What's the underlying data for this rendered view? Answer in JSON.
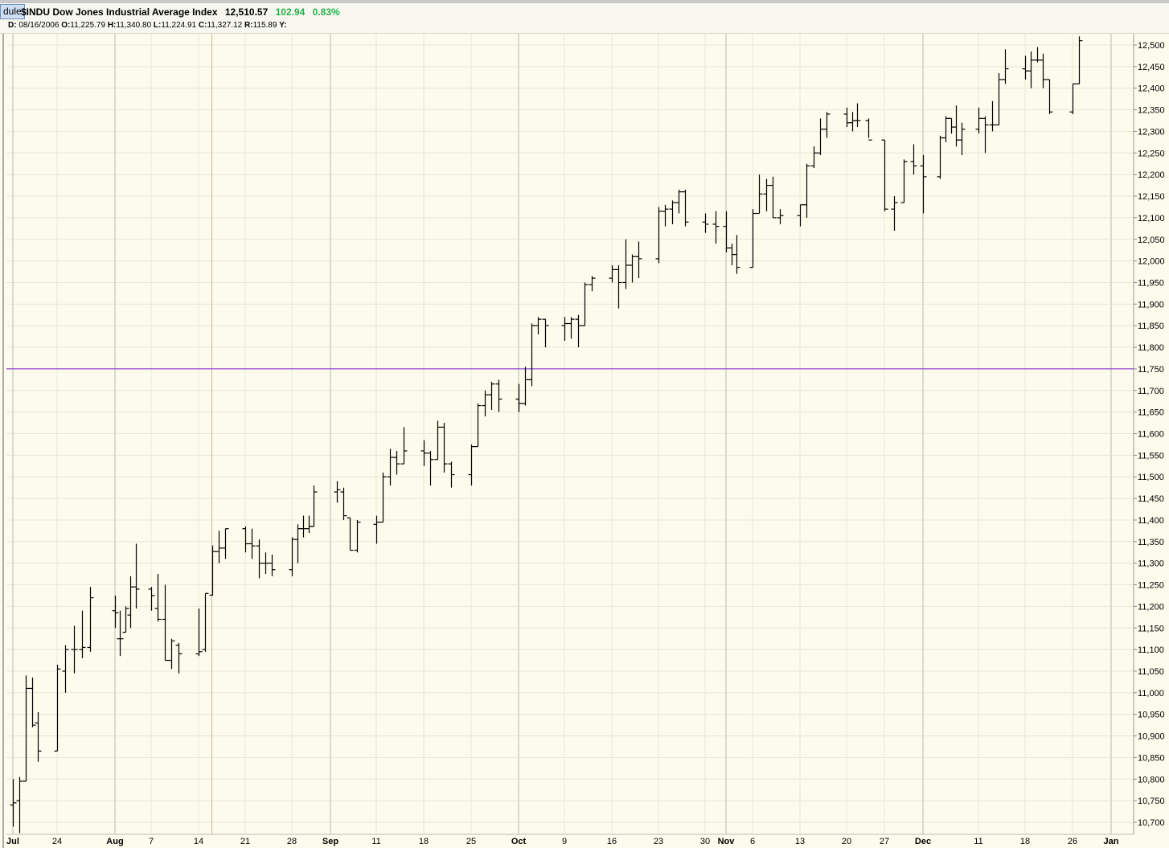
{
  "header": {
    "tab_label": "dule",
    "symbol": "$INDU",
    "name": "Dow Jones Industrial Average Index",
    "last": "12,510.57",
    "change": "102.94",
    "change_pct": "0.83%",
    "change_color": "#22b24c"
  },
  "readout": {
    "d_label": "D:",
    "d_value": "08/16/2006",
    "o_label": "O:",
    "o_value": "11,225.79",
    "h_label": "H:",
    "h_value": "11,340.80",
    "l_label": "L:",
    "l_value": "11,224.91",
    "c_label": "C:",
    "c_value": "11,327.12",
    "r_label": "R:",
    "r_value": "115.89",
    "y_label": "Y:"
  },
  "chart_data": {
    "type": "ohlc",
    "title": "$INDU Dow Jones Industrial Average Index",
    "xlabel": "",
    "ylabel": "",
    "ylim": [
      10680,
      12530
    ],
    "y_ticks": [
      10700,
      10750,
      10800,
      10850,
      10900,
      10950,
      11000,
      11050,
      11100,
      11150,
      11200,
      11250,
      11300,
      11350,
      11400,
      11450,
      11500,
      11550,
      11600,
      11650,
      11700,
      11750,
      11800,
      11850,
      11900,
      11950,
      12000,
      12050,
      12100,
      12150,
      12200,
      12250,
      12300,
      12350,
      12400,
      12450,
      12500
    ],
    "y_tick_labels": [
      "10,700",
      "10,750",
      "10,800",
      "10,850",
      "10,900",
      "10,950",
      "11,000",
      "11,050",
      "11,100",
      "11,150",
      "11,200",
      "11,250",
      "11,300",
      "11,350",
      "11,400",
      "11,450",
      "11,500",
      "11,550",
      "11,600",
      "11,650",
      "11,700",
      "11,750",
      "11,800",
      "11,850",
      "11,900",
      "11,950",
      "12,000",
      "12,050",
      "12,100",
      "12,150",
      "12,200",
      "12,250",
      "12,300",
      "12,350",
      "12,400",
      "12,450",
      "12,500"
    ],
    "x_ticks": [
      {
        "date": "2006-07-17",
        "label": "Jul",
        "major": true
      },
      {
        "date": "2006-07-24",
        "label": "24",
        "major": false
      },
      {
        "date": "2006-07-31",
        "label": "Aug",
        "major": true
      },
      {
        "date": "2006-08-07",
        "label": "7",
        "major": false
      },
      {
        "date": "2006-08-14",
        "label": "14",
        "major": false
      },
      {
        "date": "2006-08-21",
        "label": "21",
        "major": false
      },
      {
        "date": "2006-08-28",
        "label": "28",
        "major": false
      },
      {
        "date": "2006-09-04",
        "label": "Sep",
        "major": true
      },
      {
        "date": "2006-09-11",
        "label": "11",
        "major": false
      },
      {
        "date": "2006-09-18",
        "label": "18",
        "major": false
      },
      {
        "date": "2006-09-25",
        "label": "25",
        "major": false
      },
      {
        "date": "2006-10-02",
        "label": "Oct",
        "major": true
      },
      {
        "date": "2006-10-09",
        "label": "9",
        "major": false
      },
      {
        "date": "2006-10-16",
        "label": "16",
        "major": false
      },
      {
        "date": "2006-10-23",
        "label": "23",
        "major": false
      },
      {
        "date": "2006-10-30",
        "label": "30",
        "major": false
      },
      {
        "date": "2006-11-01",
        "label": "Nov",
        "major": true
      },
      {
        "date": "2006-11-06",
        "label": "6",
        "major": false
      },
      {
        "date": "2006-11-13",
        "label": "13",
        "major": false
      },
      {
        "date": "2006-11-20",
        "label": "20",
        "major": false
      },
      {
        "date": "2006-11-27",
        "label": "27",
        "major": false
      },
      {
        "date": "2006-12-01",
        "label": "Dec",
        "major": true
      },
      {
        "date": "2006-12-11",
        "label": "11",
        "major": false
      },
      {
        "date": "2006-12-18",
        "label": "18",
        "major": false
      },
      {
        "date": "2006-12-26",
        "label": "26",
        "major": false
      },
      {
        "date": "2007-01-01",
        "label": "Jan",
        "major": true
      }
    ],
    "crosshair": {
      "date": "2006-08-16",
      "value": 11750
    },
    "colors": {
      "background": "#fdfbeb",
      "grid": "#e6e8d8",
      "grid_major": "#d9dccb",
      "bar": "#000000",
      "crosshair_h": "#7b1fd1",
      "crosshair_v": "#d7b29a"
    },
    "bars": [
      {
        "date": "2006-07-17",
        "o": 10740,
        "h": 10800,
        "l": 10690,
        "c": 10745
      },
      {
        "date": "2006-07-18",
        "o": 10750,
        "h": 10805,
        "l": 10675,
        "c": 10795
      },
      {
        "date": "2006-07-19",
        "o": 10795,
        "h": 11040,
        "l": 10795,
        "c": 11010
      },
      {
        "date": "2006-07-20",
        "o": 11010,
        "h": 11035,
        "l": 10920,
        "c": 10925
      },
      {
        "date": "2006-07-21",
        "o": 10930,
        "h": 10955,
        "l": 10840,
        "c": 10865
      },
      {
        "date": "2006-07-24",
        "o": 10865,
        "h": 11065,
        "l": 10865,
        "c": 11055
      },
      {
        "date": "2006-07-25",
        "o": 11050,
        "h": 11110,
        "l": 11000,
        "c": 11100
      },
      {
        "date": "2006-07-26",
        "o": 11100,
        "h": 11155,
        "l": 11045,
        "c": 11100
      },
      {
        "date": "2006-07-27",
        "o": 11100,
        "h": 11190,
        "l": 11080,
        "c": 11105
      },
      {
        "date": "2006-07-28",
        "o": 11105,
        "h": 11245,
        "l": 11095,
        "c": 11220
      },
      {
        "date": "2006-07-31",
        "o": 11190,
        "h": 11225,
        "l": 11150,
        "c": 11185
      },
      {
        "date": "2006-08-01",
        "o": 11125,
        "h": 11190,
        "l": 11085,
        "c": 11125
      },
      {
        "date": "2006-08-02",
        "o": 11140,
        "h": 11200,
        "l": 11140,
        "c": 11195
      },
      {
        "date": "2006-08-03",
        "o": 11180,
        "h": 11270,
        "l": 11150,
        "c": 11245
      },
      {
        "date": "2006-08-04",
        "o": 11245,
        "h": 11345,
        "l": 11195,
        "c": 11240
      },
      {
        "date": "2006-08-07",
        "o": 11240,
        "h": 11245,
        "l": 11190,
        "c": 11225
      },
      {
        "date": "2006-08-08",
        "o": 11195,
        "h": 11275,
        "l": 11165,
        "c": 11170
      },
      {
        "date": "2006-08-09",
        "o": 11170,
        "h": 11250,
        "l": 11075,
        "c": 11075
      },
      {
        "date": "2006-08-10",
        "o": 11075,
        "h": 11125,
        "l": 11055,
        "c": 11120
      },
      {
        "date": "2006-08-11",
        "o": 11110,
        "h": 11115,
        "l": 11045,
        "c": 11090
      },
      {
        "date": "2006-08-14",
        "o": 11090,
        "h": 11195,
        "l": 11085,
        "c": 11095
      },
      {
        "date": "2006-08-15",
        "o": 11100,
        "h": 11230,
        "l": 11095,
        "c": 11230
      },
      {
        "date": "2006-08-16",
        "o": 11226,
        "h": 11341,
        "l": 11225,
        "c": 11327
      },
      {
        "date": "2006-08-17",
        "o": 11327,
        "h": 11375,
        "l": 11300,
        "c": 11335
      },
      {
        "date": "2006-08-18",
        "o": 11335,
        "h": 11380,
        "l": 11310,
        "c": 11380
      },
      {
        "date": "2006-08-21",
        "o": 11380,
        "h": 11385,
        "l": 11325,
        "c": 11345
      },
      {
        "date": "2006-08-22",
        "o": 11345,
        "h": 11380,
        "l": 11310,
        "c": 11340
      },
      {
        "date": "2006-08-23",
        "o": 11340,
        "h": 11355,
        "l": 11265,
        "c": 11300
      },
      {
        "date": "2006-08-24",
        "o": 11300,
        "h": 11325,
        "l": 11275,
        "c": 11300
      },
      {
        "date": "2006-08-25",
        "o": 11300,
        "h": 11320,
        "l": 11270,
        "c": 11285
      },
      {
        "date": "2006-08-28",
        "o": 11285,
        "h": 11360,
        "l": 11270,
        "c": 11355
      },
      {
        "date": "2006-08-29",
        "o": 11355,
        "h": 11390,
        "l": 11300,
        "c": 11380
      },
      {
        "date": "2006-08-30",
        "o": 11380,
        "h": 11410,
        "l": 11360,
        "c": 11380
      },
      {
        "date": "2006-08-31",
        "o": 11380,
        "h": 11410,
        "l": 11370,
        "c": 11385
      },
      {
        "date": "2006-09-01",
        "o": 11385,
        "h": 11480,
        "l": 11385,
        "c": 11465
      },
      {
        "date": "2006-09-05",
        "o": 11465,
        "h": 11490,
        "l": 11440,
        "c": 11470
      },
      {
        "date": "2006-09-06",
        "o": 11465,
        "h": 11475,
        "l": 11400,
        "c": 11410
      },
      {
        "date": "2006-09-07",
        "o": 11405,
        "h": 11405,
        "l": 11330,
        "c": 11330
      },
      {
        "date": "2006-09-08",
        "o": 11330,
        "h": 11400,
        "l": 11325,
        "c": 11395
      },
      {
        "date": "2006-09-11",
        "o": 11390,
        "h": 11410,
        "l": 11345,
        "c": 11395
      },
      {
        "date": "2006-09-12",
        "o": 11395,
        "h": 11510,
        "l": 11395,
        "c": 11500
      },
      {
        "date": "2006-09-13",
        "o": 11500,
        "h": 11565,
        "l": 11480,
        "c": 11545
      },
      {
        "date": "2006-09-14",
        "o": 11545,
        "h": 11560,
        "l": 11505,
        "c": 11530
      },
      {
        "date": "2006-09-15",
        "o": 11530,
        "h": 11615,
        "l": 11530,
        "c": 11560
      },
      {
        "date": "2006-09-18",
        "o": 11560,
        "h": 11585,
        "l": 11525,
        "c": 11555
      },
      {
        "date": "2006-09-19",
        "o": 11555,
        "h": 11560,
        "l": 11480,
        "c": 11540
      },
      {
        "date": "2006-09-20",
        "o": 11540,
        "h": 11630,
        "l": 11540,
        "c": 11615
      },
      {
        "date": "2006-09-21",
        "o": 11615,
        "h": 11625,
        "l": 11510,
        "c": 11530
      },
      {
        "date": "2006-09-22",
        "o": 11530,
        "h": 11535,
        "l": 11475,
        "c": 11505
      },
      {
        "date": "2006-09-25",
        "o": 11505,
        "h": 11575,
        "l": 11480,
        "c": 11570
      },
      {
        "date": "2006-09-26",
        "o": 11570,
        "h": 11670,
        "l": 11570,
        "c": 11665
      },
      {
        "date": "2006-09-27",
        "o": 11665,
        "h": 11700,
        "l": 11640,
        "c": 11690
      },
      {
        "date": "2006-09-28",
        "o": 11690,
        "h": 11720,
        "l": 11655,
        "c": 11715
      },
      {
        "date": "2006-09-29",
        "o": 11715,
        "h": 11725,
        "l": 11650,
        "c": 11680
      },
      {
        "date": "2006-10-02",
        "o": 11680,
        "h": 11715,
        "l": 11650,
        "c": 11670
      },
      {
        "date": "2006-10-03",
        "o": 11670,
        "h": 11755,
        "l": 11665,
        "c": 11725
      },
      {
        "date": "2006-10-04",
        "o": 11725,
        "h": 11855,
        "l": 11710,
        "c": 11850
      },
      {
        "date": "2006-10-05",
        "o": 11850,
        "h": 11870,
        "l": 11830,
        "c": 11865
      },
      {
        "date": "2006-10-06",
        "o": 11865,
        "h": 11865,
        "l": 11800,
        "c": 11850
      },
      {
        "date": "2006-10-09",
        "o": 11850,
        "h": 11870,
        "l": 11815,
        "c": 11855
      },
      {
        "date": "2006-10-10",
        "o": 11855,
        "h": 11870,
        "l": 11820,
        "c": 11865
      },
      {
        "date": "2006-10-11",
        "o": 11865,
        "h": 11875,
        "l": 11800,
        "c": 11850
      },
      {
        "date": "2006-10-12",
        "o": 11850,
        "h": 11950,
        "l": 11850,
        "c": 11945
      },
      {
        "date": "2006-10-13",
        "o": 11945,
        "h": 11965,
        "l": 11930,
        "c": 11960
      },
      {
        "date": "2006-10-16",
        "o": 11960,
        "h": 11990,
        "l": 11950,
        "c": 11980
      },
      {
        "date": "2006-10-17",
        "o": 11980,
        "h": 11990,
        "l": 11890,
        "c": 11950
      },
      {
        "date": "2006-10-18",
        "o": 11950,
        "h": 12050,
        "l": 11935,
        "c": 11990
      },
      {
        "date": "2006-10-19",
        "o": 11990,
        "h": 12015,
        "l": 11950,
        "c": 12010
      },
      {
        "date": "2006-10-20",
        "o": 12010,
        "h": 12045,
        "l": 11960,
        "c": 12005
      },
      {
        "date": "2006-10-23",
        "o": 12005,
        "h": 12125,
        "l": 11995,
        "c": 12115
      },
      {
        "date": "2006-10-24",
        "o": 12115,
        "h": 12130,
        "l": 12080,
        "c": 12120
      },
      {
        "date": "2006-10-25",
        "o": 12120,
        "h": 12140,
        "l": 12085,
        "c": 12135
      },
      {
        "date": "2006-10-26",
        "o": 12135,
        "h": 12165,
        "l": 12110,
        "c": 12160
      },
      {
        "date": "2006-10-27",
        "o": 12160,
        "h": 12165,
        "l": 12080,
        "c": 12090
      },
      {
        "date": "2006-10-30",
        "o": 12090,
        "h": 12110,
        "l": 12065,
        "c": 12085
      },
      {
        "date": "2006-10-31",
        "o": 12085,
        "h": 12115,
        "l": 12040,
        "c": 12080
      },
      {
        "date": "2006-11-01",
        "o": 12080,
        "h": 12115,
        "l": 12020,
        "c": 12030
      },
      {
        "date": "2006-11-02",
        "o": 12030,
        "h": 12040,
        "l": 11990,
        "c": 12015
      },
      {
        "date": "2006-11-03",
        "o": 12015,
        "h": 12060,
        "l": 11970,
        "c": 11985
      },
      {
        "date": "2006-11-06",
        "o": 11985,
        "h": 12120,
        "l": 11985,
        "c": 12110
      },
      {
        "date": "2006-11-07",
        "o": 12110,
        "h": 12200,
        "l": 12110,
        "c": 12155
      },
      {
        "date": "2006-11-08",
        "o": 12155,
        "h": 12190,
        "l": 12115,
        "c": 12175
      },
      {
        "date": "2006-11-09",
        "o": 12175,
        "h": 12195,
        "l": 12100,
        "c": 12100
      },
      {
        "date": "2006-11-10",
        "o": 12100,
        "h": 12120,
        "l": 12085,
        "c": 12105
      },
      {
        "date": "2006-11-13",
        "o": 12105,
        "h": 12130,
        "l": 12080,
        "c": 12130
      },
      {
        "date": "2006-11-14",
        "o": 12130,
        "h": 12225,
        "l": 12100,
        "c": 12220
      },
      {
        "date": "2006-11-15",
        "o": 12220,
        "h": 12265,
        "l": 12215,
        "c": 12250
      },
      {
        "date": "2006-11-16",
        "o": 12250,
        "h": 12330,
        "l": 12245,
        "c": 12305
      },
      {
        "date": "2006-11-17",
        "o": 12305,
        "h": 12345,
        "l": 12285,
        "c": 12340
      },
      {
        "date": "2006-11-20",
        "o": 12340,
        "h": 12355,
        "l": 12310,
        "c": 12320
      },
      {
        "date": "2006-11-21",
        "o": 12320,
        "h": 12345,
        "l": 12300,
        "c": 12325
      },
      {
        "date": "2006-11-22",
        "o": 12325,
        "h": 12365,
        "l": 12310,
        "c": 12325
      },
      {
        "date": "2006-11-24",
        "o": 12325,
        "h": 12330,
        "l": 12285,
        "c": 12280
      },
      {
        "date": "2006-11-27",
        "o": 12280,
        "h": 12280,
        "l": 12115,
        "c": 12120
      },
      {
        "date": "2006-11-28",
        "o": 12120,
        "h": 12150,
        "l": 12070,
        "c": 12135
      },
      {
        "date": "2006-11-29",
        "o": 12135,
        "h": 12235,
        "l": 12135,
        "c": 12230
      },
      {
        "date": "2006-11-30",
        "o": 12230,
        "h": 12270,
        "l": 12200,
        "c": 12220
      },
      {
        "date": "2006-12-01",
        "o": 12220,
        "h": 12245,
        "l": 12110,
        "c": 12195
      },
      {
        "date": "2006-12-04",
        "o": 12195,
        "h": 12290,
        "l": 12190,
        "c": 12285
      },
      {
        "date": "2006-12-05",
        "o": 12285,
        "h": 12335,
        "l": 12275,
        "c": 12330
      },
      {
        "date": "2006-12-06",
        "o": 12330,
        "h": 12330,
        "l": 12295,
        "c": 12310
      },
      {
        "date": "2006-12-07",
        "o": 12310,
        "h": 12360,
        "l": 12265,
        "c": 12280
      },
      {
        "date": "2006-12-08",
        "o": 12280,
        "h": 12320,
        "l": 12245,
        "c": 12305
      },
      {
        "date": "2006-12-11",
        "o": 12305,
        "h": 12355,
        "l": 12295,
        "c": 12330
      },
      {
        "date": "2006-12-12",
        "o": 12330,
        "h": 12335,
        "l": 12250,
        "c": 12315
      },
      {
        "date": "2006-12-13",
        "o": 12315,
        "h": 12370,
        "l": 12300,
        "c": 12315
      },
      {
        "date": "2006-12-14",
        "o": 12315,
        "h": 12435,
        "l": 12315,
        "c": 12420
      },
      {
        "date": "2006-12-15",
        "o": 12420,
        "h": 12490,
        "l": 12410,
        "c": 12445
      },
      {
        "date": "2006-12-18",
        "o": 12445,
        "h": 12475,
        "l": 12420,
        "c": 12440
      },
      {
        "date": "2006-12-19",
        "o": 12440,
        "h": 12485,
        "l": 12400,
        "c": 12465
      },
      {
        "date": "2006-12-20",
        "o": 12465,
        "h": 12495,
        "l": 12460,
        "c": 12465
      },
      {
        "date": "2006-12-21",
        "o": 12465,
        "h": 12480,
        "l": 12400,
        "c": 12420
      },
      {
        "date": "2006-12-22",
        "o": 12420,
        "h": 12420,
        "l": 12340,
        "c": 12345
      },
      {
        "date": "2006-12-26",
        "o": 12345,
        "h": 12410,
        "l": 12340,
        "c": 12410
      },
      {
        "date": "2006-12-27",
        "o": 12410,
        "h": 12520,
        "l": 12410,
        "c": 12510
      }
    ]
  }
}
